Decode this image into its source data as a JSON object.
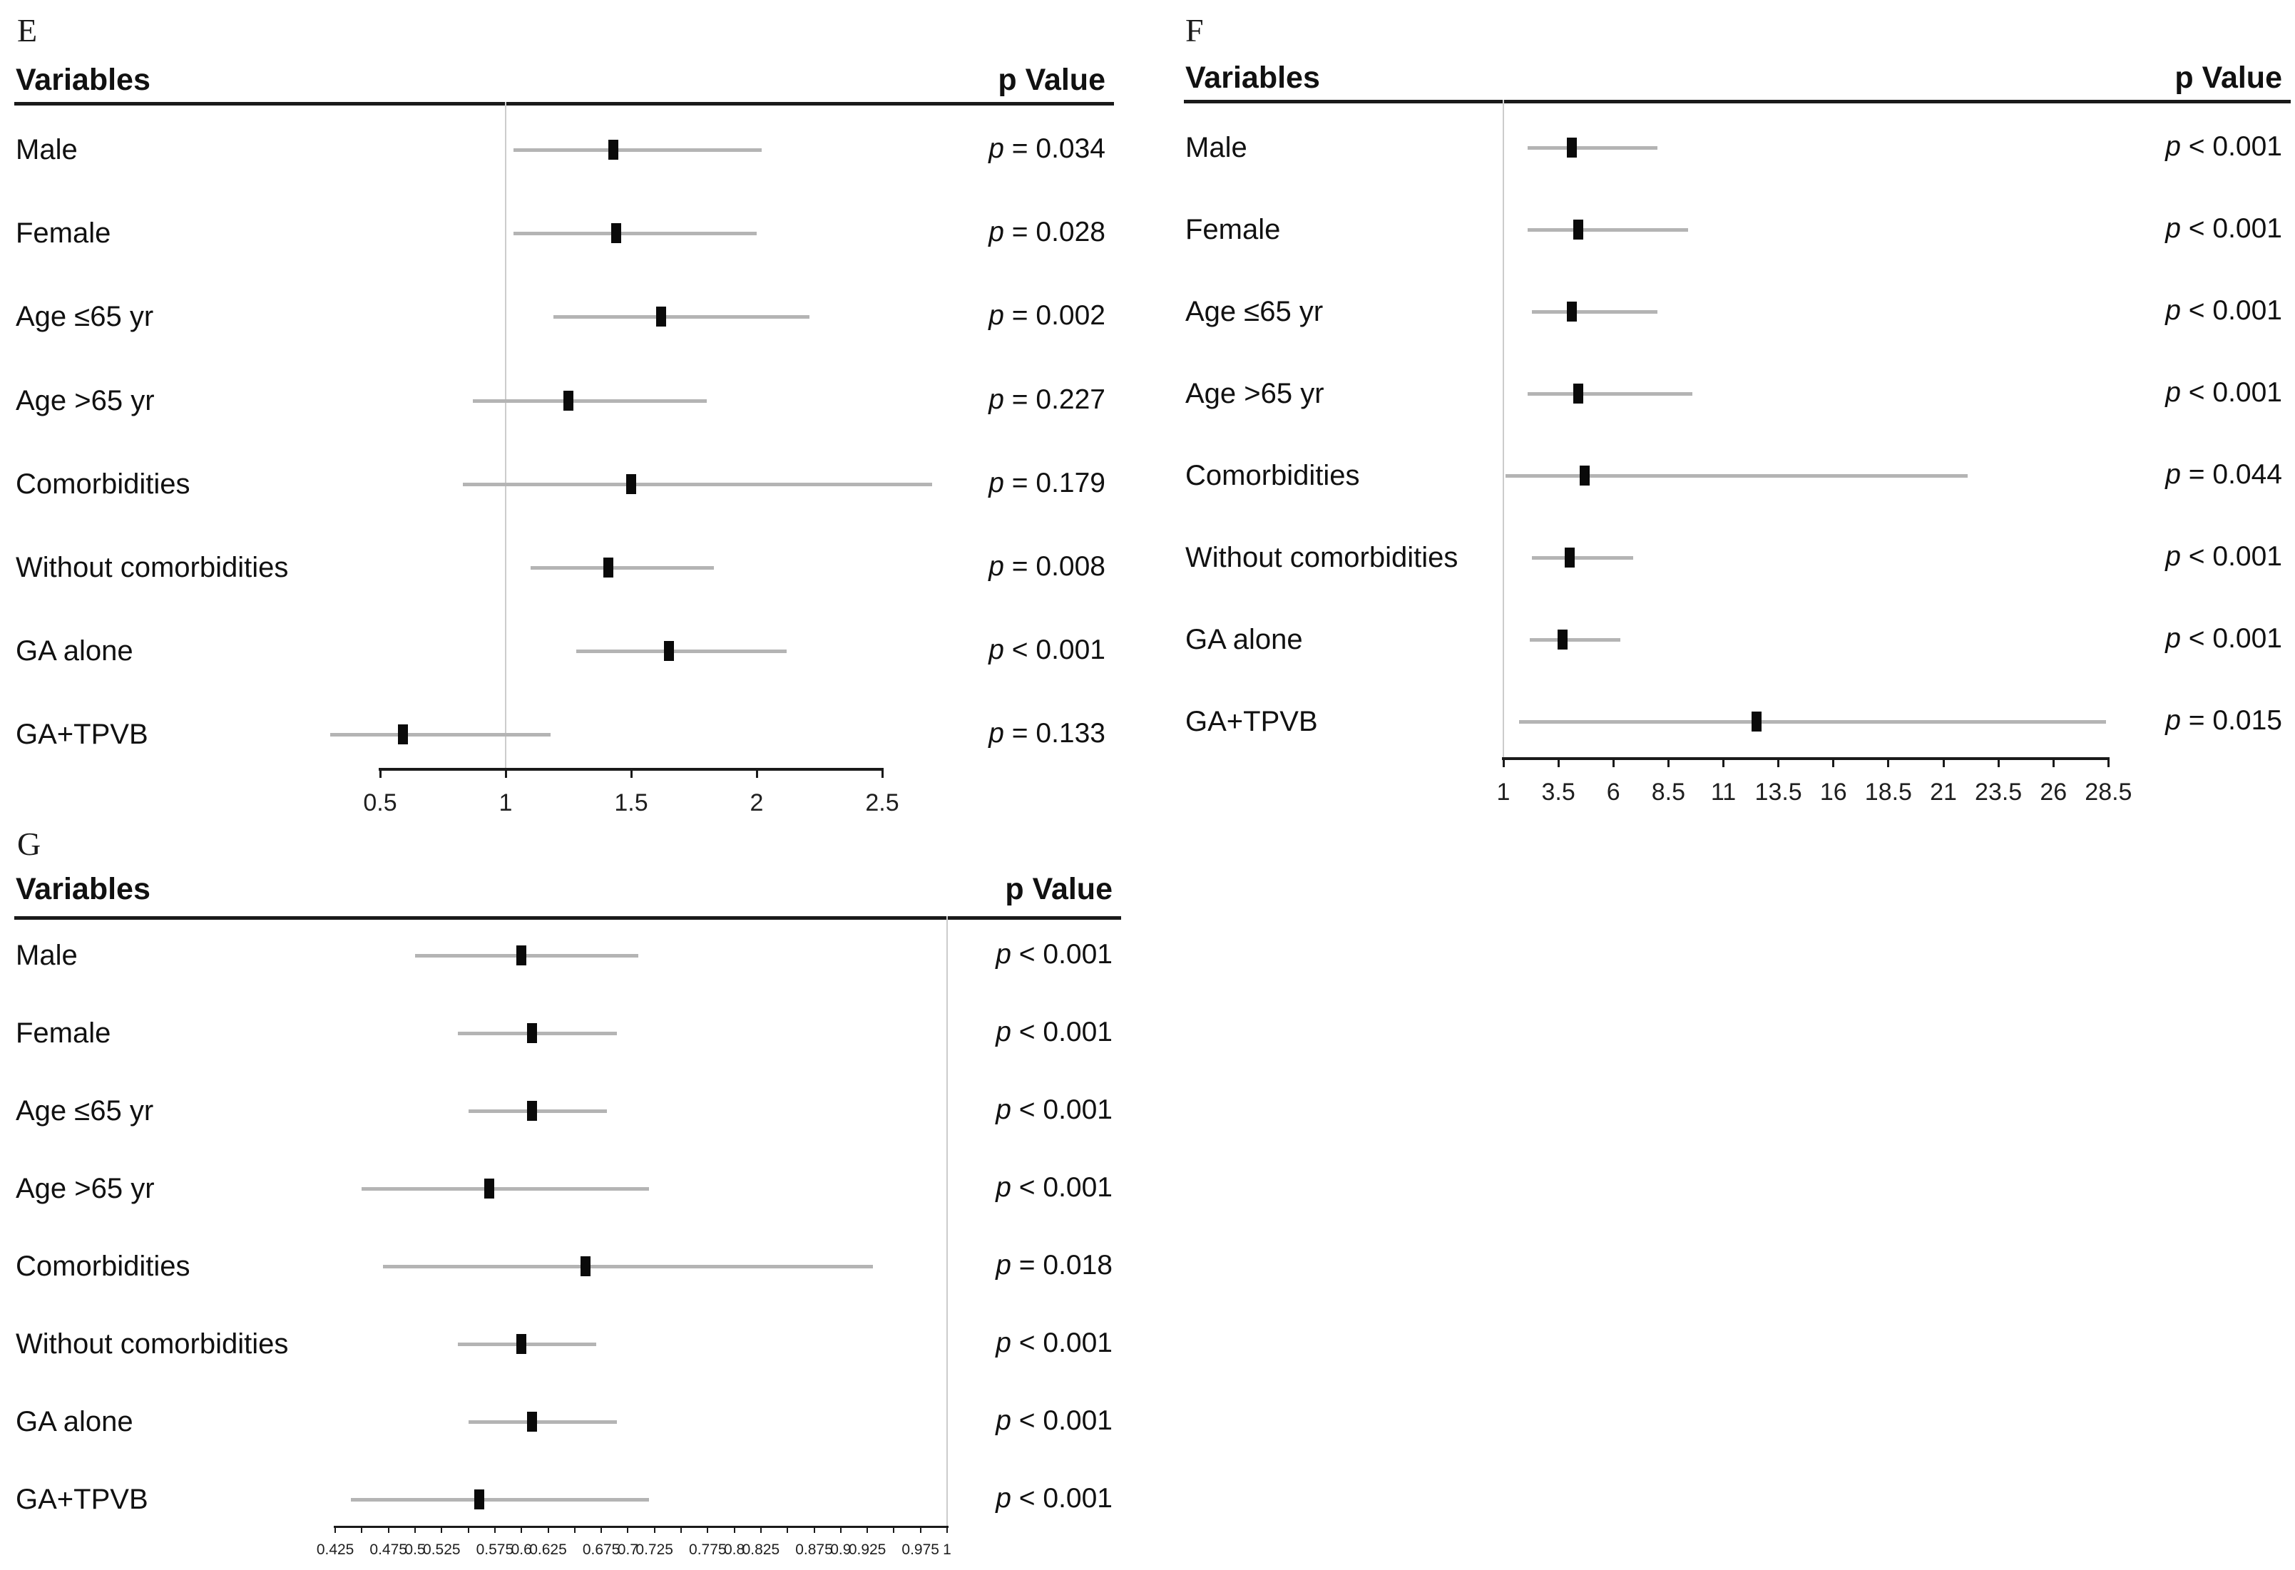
{
  "chart_data": [
    {
      "type": "forest",
      "panel_label": "E",
      "columns": {
        "variables": "Variables",
        "p_value": "p Value"
      },
      "xaxis": {
        "range": [
          0.5,
          2.5
        ],
        "ref_line": 1,
        "grid": false,
        "tick_values": [
          0.5,
          1,
          1.5,
          2,
          2.5
        ],
        "tick_labels": [
          "0.5",
          "1",
          "1.5",
          "2",
          "2.5"
        ]
      },
      "rows": [
        {
          "label": "Male",
          "est": 1.43,
          "lo": 1.03,
          "hi": 2.02,
          "p": "p = 0.034"
        },
        {
          "label": "Female",
          "est": 1.44,
          "lo": 1.03,
          "hi": 2.0,
          "p": "p = 0.028"
        },
        {
          "label": "Age ≤65 yr",
          "est": 1.62,
          "lo": 1.19,
          "hi": 2.21,
          "p": "p = 0.002"
        },
        {
          "label": "Age >65 yr",
          "est": 1.25,
          "lo": 0.87,
          "hi": 1.8,
          "p": "p = 0.227"
        },
        {
          "label": "Comorbidities",
          "est": 1.5,
          "lo": 0.83,
          "hi": 2.7,
          "p": "p = 0.179"
        },
        {
          "label": "Without comorbidities",
          "est": 1.41,
          "lo": 1.1,
          "hi": 1.83,
          "p": "p = 0.008"
        },
        {
          "label": "GA alone",
          "est": 1.65,
          "lo": 1.28,
          "hi": 2.12,
          "p": "p < 0.001"
        },
        {
          "label": "GA+TPVB",
          "est": 0.59,
          "lo": 0.3,
          "hi": 1.18,
          "p": "p = 0.133"
        }
      ]
    },
    {
      "type": "forest",
      "panel_label": "F",
      "columns": {
        "variables": "Variables",
        "p_value": "p Value"
      },
      "xaxis": {
        "range": [
          1,
          28.5
        ],
        "ref_line": 1,
        "grid": false,
        "tick_values": [
          1,
          3.5,
          6,
          8.5,
          11,
          13.5,
          16,
          18.5,
          21,
          23.5,
          26,
          28.5
        ],
        "tick_labels": [
          "1",
          "3.5",
          "6",
          "8.5",
          "11",
          "13.5",
          "16",
          "18.5",
          "21",
          "23.5",
          "26",
          "28.5"
        ]
      },
      "rows": [
        {
          "label": "Male",
          "est": 4.1,
          "lo": 2.1,
          "hi": 8.0,
          "p": "p < 0.001"
        },
        {
          "label": "Female",
          "est": 4.4,
          "lo": 2.1,
          "hi": 9.4,
          "p": "p < 0.001"
        },
        {
          "label": "Age ≤65 yr",
          "est": 4.1,
          "lo": 2.3,
          "hi": 8.0,
          "p": "p < 0.001"
        },
        {
          "label": "Age >65 yr",
          "est": 4.4,
          "lo": 2.1,
          "hi": 9.6,
          "p": "p < 0.001"
        },
        {
          "label": "Comorbidities",
          "est": 4.7,
          "lo": 1.1,
          "hi": 22.1,
          "p": "p = 0.044"
        },
        {
          "label": "Without comorbidities",
          "est": 4.0,
          "lo": 2.3,
          "hi": 6.9,
          "p": "p < 0.001"
        },
        {
          "label": "GA alone",
          "est": 3.7,
          "lo": 2.2,
          "hi": 6.3,
          "p": "p < 0.001"
        },
        {
          "label": "GA+TPVB",
          "est": 12.5,
          "lo": 1.7,
          "hi": 28.4,
          "p": "p = 0.015"
        }
      ]
    },
    {
      "type": "forest",
      "panel_label": "G",
      "columns": {
        "variables": "Variables",
        "p_value": "p Value"
      },
      "xaxis": {
        "range": [
          0.425,
          1
        ],
        "ref_line": 1,
        "grid": false,
        "tick_values": [
          0.425,
          0.45,
          0.475,
          0.5,
          0.525,
          0.55,
          0.575,
          0.6,
          0.625,
          0.65,
          0.675,
          0.7,
          0.725,
          0.75,
          0.775,
          0.8,
          0.825,
          0.85,
          0.875,
          0.9,
          0.925,
          0.95,
          0.975,
          1
        ],
        "tick_labels": [
          "0.425",
          "",
          "0.475",
          "0.5",
          "0.525",
          "",
          "0.575",
          "0.6",
          "0.625",
          "",
          "0.675",
          "0.7",
          "0.725",
          "",
          "0.775",
          "0.8",
          "0.825",
          "",
          "0.875",
          "0.9",
          "0.925",
          "",
          "0.975",
          "1"
        ]
      },
      "rows": [
        {
          "label": "Male",
          "est": 0.6,
          "lo": 0.5,
          "hi": 0.71,
          "p": "p < 0.001"
        },
        {
          "label": "Female",
          "est": 0.61,
          "lo": 0.54,
          "hi": 0.69,
          "p": "p < 0.001"
        },
        {
          "label": "Age ≤65 yr",
          "est": 0.61,
          "lo": 0.55,
          "hi": 0.68,
          "p": "p < 0.001"
        },
        {
          "label": "Age >65 yr",
          "est": 0.57,
          "lo": 0.45,
          "hi": 0.72,
          "p": "p < 0.001"
        },
        {
          "label": "Comorbidities",
          "est": 0.66,
          "lo": 0.47,
          "hi": 0.93,
          "p": "p = 0.018"
        },
        {
          "label": "Without comorbidities",
          "est": 0.6,
          "lo": 0.54,
          "hi": 0.67,
          "p": "p < 0.001"
        },
        {
          "label": "GA alone",
          "est": 0.61,
          "lo": 0.55,
          "hi": 0.69,
          "p": "p < 0.001"
        },
        {
          "label": "GA+TPVB",
          "est": 0.56,
          "lo": 0.44,
          "hi": 0.72,
          "p": "p < 0.001"
        }
      ]
    }
  ]
}
